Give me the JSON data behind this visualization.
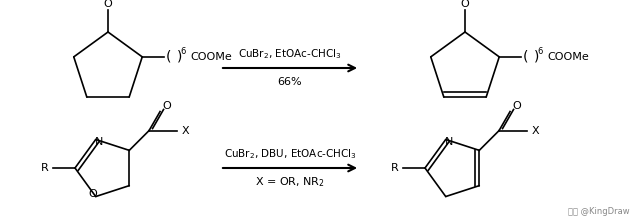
{
  "background_color": "#ffffff",
  "figsize": [
    6.4,
    2.24
  ],
  "dpi": 100,
  "reaction1_top": "CuBr$_2$, EtOAc-CHCl$_3$",
  "reaction1_bottom": "66%",
  "reaction2_top": "CuBr$_2$, DBU, EtOAc-CHCl$_3$",
  "reaction2_bottom": "X = OR, NR$_2$",
  "watermark": "头条 @KingDraw",
  "lw": 1.2
}
